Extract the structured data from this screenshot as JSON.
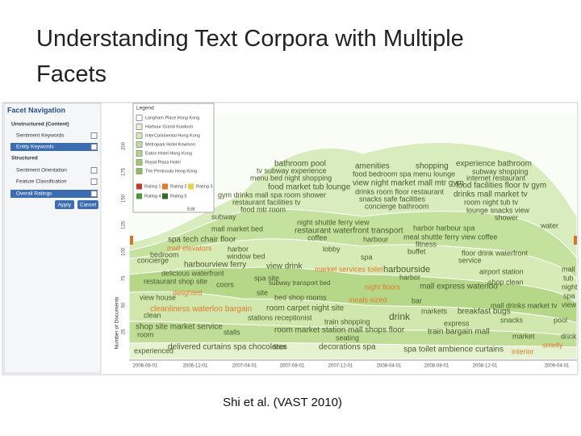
{
  "slide": {
    "title": "Understanding Text Corpora with Multiple Facets",
    "caption": "Shi et al. (VAST 2010)"
  },
  "facet_panel": {
    "title": "Facet Navigation",
    "items": [
      "Unstructured (Content)",
      "Sentiment Keywords",
      "Entity Keywords",
      "Structured",
      "Sentiment Orientation",
      "Feature Classification",
      "Overall Ratings"
    ],
    "buttons": [
      "Apply",
      "Cancel"
    ]
  },
  "legend": {
    "title": "Legend",
    "hotels": [
      "Langham Place Hong Kong",
      "Harbour Grand Kowloon",
      "InterContinental Hong Kong",
      "Metropark Hotel Kowloon",
      "Eaton Hotel Hong Kong",
      "Royal Plaza Hotel",
      "The Peninsula Hong Kong"
    ],
    "ratings": [
      "Rating 1",
      "Rating 2",
      "Rating 3",
      "Rating 4",
      "Rating 5"
    ],
    "edit": "Edit"
  },
  "axes": {
    "y_label": "Number of Documents",
    "y_ticks": [
      200,
      175,
      150,
      125,
      100,
      75,
      50,
      25
    ],
    "x_ticks": [
      "2006-08-01",
      "2006-12-01",
      "2007-04-01",
      "2007-08-01",
      "2007-12-01",
      "2008-04-01",
      "2008-08-01",
      "2008-12-01",
      "2009-04-01"
    ]
  },
  "keywords": [
    "bathroom pool",
    "tv subway experience",
    "menu bed night shopping",
    "amenities",
    "shopping",
    "experience bathroom",
    "food bedroom spa menu lounge",
    "subway shopping",
    "internet restaurant",
    "view night market mall mtr gym",
    "food facilities floor tv gym",
    "drinks room floor restaurant",
    "snacks safe facilities",
    "concierge bathroom",
    "drinks mall market tv",
    "room night tub tv",
    "lounge snacks view",
    "shower",
    "water",
    "food market tub lounge",
    "gym drinks mall spa room shower",
    "restaurant facilities tv",
    "food mtr room",
    "subway",
    "night shuttle ferry view",
    "restaurant waterfront transport",
    "coffee",
    "harbour",
    "harbor harbour spa",
    "meal shuttle ferry view coffee",
    "fitness",
    "buffet",
    "mall market bed",
    "spa tech chair floor",
    "mall elevators",
    "harbor",
    "bedroom",
    "window bed",
    "concierge",
    "harbourview ferry",
    "lobby",
    "view drink",
    "spa",
    "harbourside",
    "floor drink waterfront",
    "service",
    "mall",
    "tub",
    "night",
    "spa",
    "view",
    "delicious waterfront",
    "restaurant shop site",
    "market services toilet",
    "spa site",
    "airport station",
    "shop clean",
    "mall express waterloo",
    "coors",
    "delighted",
    "subway transport bed",
    "night floors",
    "harbor",
    "bar",
    "view house",
    "site",
    "bed shop rooms",
    "meals sized",
    "cleanliness waterloo bargain",
    "room carpet night site",
    "drink",
    "markets",
    "mall drinks market tv",
    "breakfast bugs",
    "clean",
    "stations receptionist",
    "shop site market service",
    "train shopping",
    "room market station mall shops floor",
    "express",
    "train bargain mall",
    "snacks",
    "pool",
    "room",
    "stalls",
    "seating",
    "experienced",
    "delivered curtains spa chocolates",
    "door",
    "decorations spa",
    "spa toilet ambience curtains",
    "market",
    "drink",
    "smelly",
    "interior"
  ]
}
